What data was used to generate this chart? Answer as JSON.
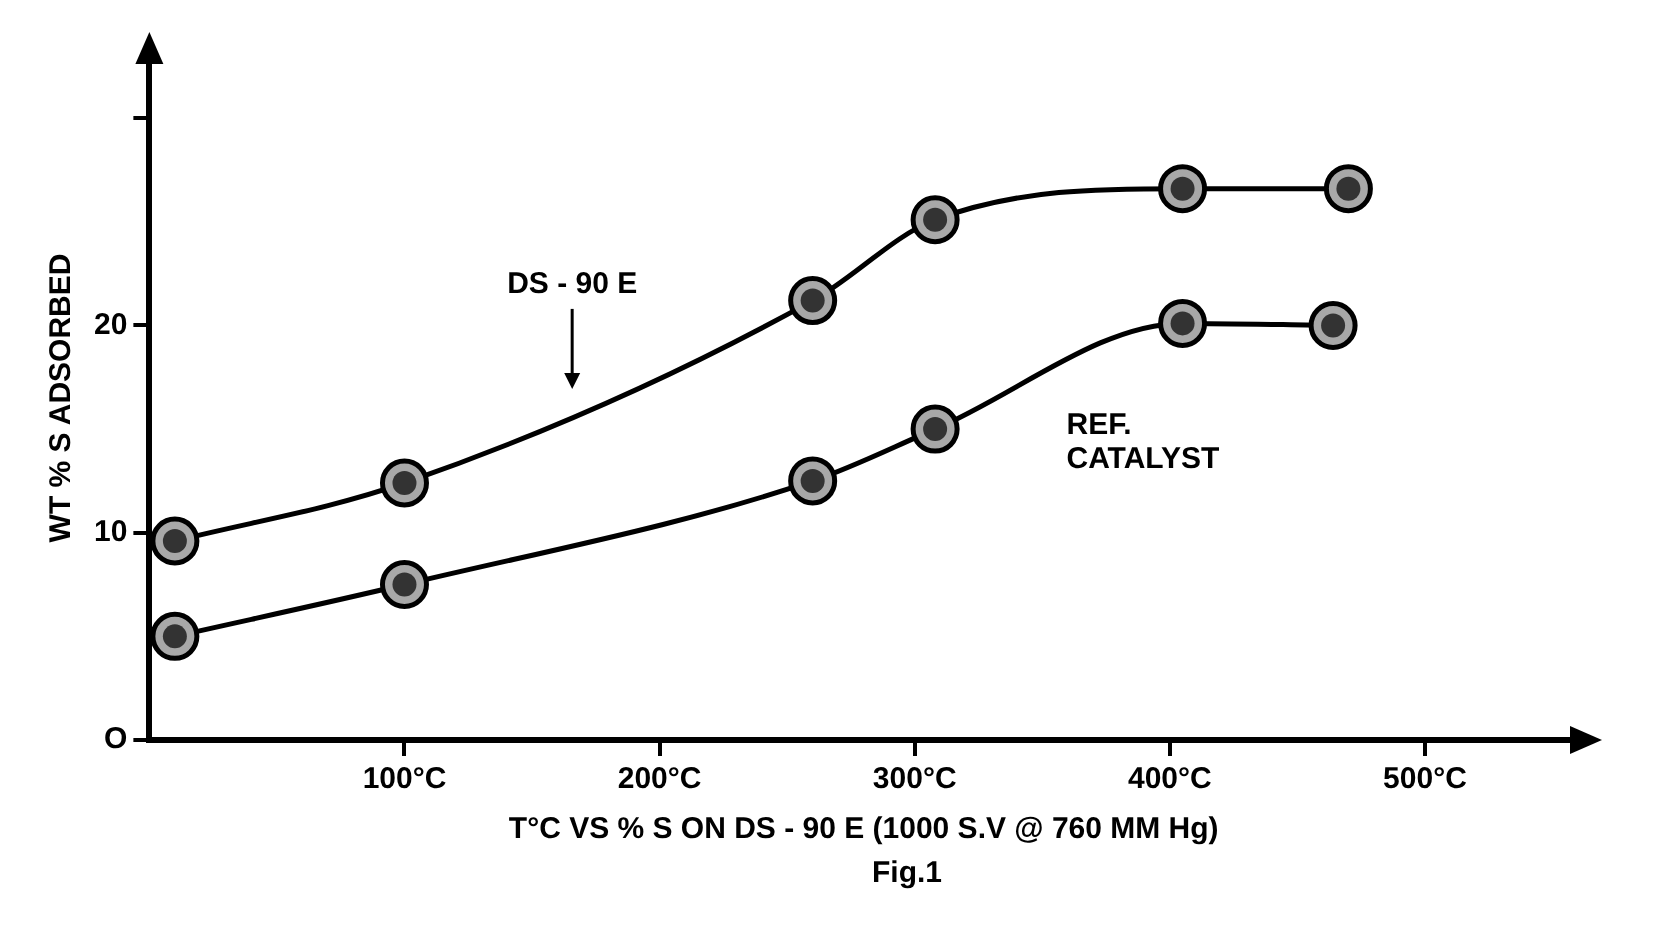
{
  "chart_data": {
    "type": "line",
    "xlabel": "T°C VS % S ON DS - 90 E (1000 S.V @ 760 MM Hg)",
    "ylabel": "WT % S ADSORBED",
    "x": [
      10,
      100,
      260,
      308,
      405,
      470
    ],
    "series": [
      {
        "name": "DS - 90 E",
        "color": "#000000",
        "values": [
          9.6,
          12.4,
          21.2,
          25.1,
          26.6,
          26.6
        ]
      },
      {
        "name": "REF. CATALYST",
        "color": "#000000",
        "x": [
          10,
          100,
          260,
          308,
          405,
          464
        ],
        "values": [
          5.0,
          7.5,
          12.5,
          15.0,
          20.1,
          20.0
        ]
      }
    ],
    "xlim": [
      0,
      560
    ],
    "ylim": [
      0,
      33
    ],
    "xticks": [
      {
        "value": 100,
        "label": "100°C"
      },
      {
        "value": 200,
        "label": "200°C"
      },
      {
        "value": 300,
        "label": "300°C"
      },
      {
        "value": 400,
        "label": "400°C"
      },
      {
        "value": 500,
        "label": "500°C"
      }
    ],
    "yticks": [
      {
        "value": 0,
        "label": "O"
      },
      10,
      20,
      {
        "value": 30,
        "label": null
      }
    ],
    "annotations": [
      "Fig.1"
    ],
    "grid": false,
    "legend": false,
    "marker": "circle",
    "line_style": "solid"
  }
}
